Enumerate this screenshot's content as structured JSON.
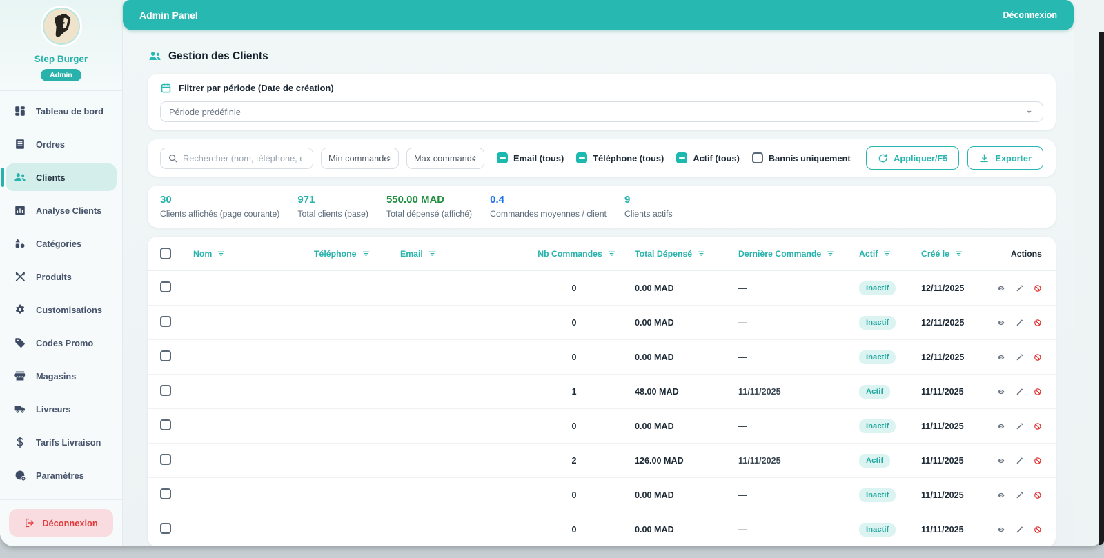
{
  "header": {
    "title": "Admin Panel",
    "logout_label": "Déconnexion"
  },
  "sidebar": {
    "user_name": "Step Burger",
    "user_role": "Admin",
    "items": [
      {
        "label": "Tableau de bord",
        "icon": "dashboard-icon",
        "active": false
      },
      {
        "label": "Ordres",
        "icon": "orders-icon",
        "active": false
      },
      {
        "label": "Clients",
        "icon": "people-icon",
        "active": true
      },
      {
        "label": "Analyse Clients",
        "icon": "analytics-icon",
        "active": false
      },
      {
        "label": "Catégories",
        "icon": "categories-icon",
        "active": false
      },
      {
        "label": "Produits",
        "icon": "utensils-icon",
        "active": false
      },
      {
        "label": "Customisations",
        "icon": "gear-icon",
        "active": false
      },
      {
        "label": "Codes Promo",
        "icon": "tag-icon",
        "active": false
      },
      {
        "label": "Magasins",
        "icon": "store-icon",
        "active": false
      },
      {
        "label": "Livreurs",
        "icon": "truck-icon",
        "active": false
      },
      {
        "label": "Tarifs Livraison",
        "icon": "dollar-icon",
        "active": false
      },
      {
        "label": "Paramètres",
        "icon": "settings-icon",
        "active": false
      }
    ],
    "logout_label": "Déconnexion",
    "logout_icon": "logout-icon"
  },
  "page": {
    "title": "Gestion des Clients",
    "icon": "people-icon"
  },
  "period_filter": {
    "title": "Filtrer par période (Date de création)",
    "icon": "calendar-icon",
    "select_placeholder": "Période prédéfinie",
    "caret_icon": "chevron-down-icon"
  },
  "filters": {
    "search_icon": "search-icon",
    "search_placeholder": "Rechercher (nom, téléphone, email)",
    "min_placeholder": "Min commandes",
    "max_placeholder": "Max commandes",
    "spinner_icon": "spinner-icon",
    "checkboxes": [
      {
        "label": "Email (tous)",
        "state": "indeterminate"
      },
      {
        "label": "Téléphone (tous)",
        "state": "indeterminate"
      },
      {
        "label": "Actif (tous)",
        "state": "indeterminate"
      },
      {
        "label": "Bannis uniquement",
        "state": "unchecked"
      }
    ],
    "apply": {
      "label": "Appliquer/F5",
      "icon": "refresh-icon"
    },
    "export": {
      "label": "Exporter",
      "icon": "download-icon"
    }
  },
  "stats": [
    {
      "value": "30",
      "label": "Clients affichés (page courante)",
      "color": "#29b2ac"
    },
    {
      "value": "971",
      "label": "Total clients (base)",
      "color": "#29b2ac"
    },
    {
      "value": "550.00 MAD",
      "label": "Total dépensé (affiché)",
      "color": "#1e8e3e"
    },
    {
      "value": "0.4",
      "label": "Commandes moyennes / client",
      "color": "#1a73e8"
    },
    {
      "value": "9",
      "label": "Clients actifs",
      "color": "#29b2ac"
    }
  ],
  "table": {
    "columns": [
      "Nom",
      "Téléphone",
      "Email",
      "Nb Commandes",
      "Total Dépensé",
      "Dernière Commande",
      "Actif",
      "Créé le",
      "Actions"
    ],
    "sort_icon": "sort-icon",
    "row_actions": [
      {
        "name": "view",
        "icon": "eye-icon"
      },
      {
        "name": "edit",
        "icon": "pencil-icon"
      },
      {
        "name": "ban",
        "icon": "ban-icon"
      }
    ],
    "rows": [
      {
        "nom": "",
        "telephone": "",
        "email": "",
        "nb_commandes": "0",
        "total_depense": "0.00 MAD",
        "derniere_commande": "—",
        "actif": "Inactif",
        "cree_le": "12/11/2025"
      },
      {
        "nom": "",
        "telephone": "",
        "email": "",
        "nb_commandes": "0",
        "total_depense": "0.00 MAD",
        "derniere_commande": "—",
        "actif": "Inactif",
        "cree_le": "12/11/2025"
      },
      {
        "nom": "",
        "telephone": "",
        "email": "",
        "nb_commandes": "0",
        "total_depense": "0.00 MAD",
        "derniere_commande": "—",
        "actif": "Inactif",
        "cree_le": "12/11/2025"
      },
      {
        "nom": "",
        "telephone": "",
        "email": "",
        "nb_commandes": "1",
        "total_depense": "48.00 MAD",
        "derniere_commande": "11/11/2025",
        "actif": "Actif",
        "cree_le": "11/11/2025"
      },
      {
        "nom": "",
        "telephone": "",
        "email": "",
        "nb_commandes": "0",
        "total_depense": "0.00 MAD",
        "derniere_commande": "—",
        "actif": "Inactif",
        "cree_le": "11/11/2025"
      },
      {
        "nom": "",
        "telephone": "",
        "email": "",
        "nb_commandes": "2",
        "total_depense": "126.00 MAD",
        "derniere_commande": "11/11/2025",
        "actif": "Actif",
        "cree_le": "11/11/2025"
      },
      {
        "nom": "",
        "telephone": "",
        "email": "",
        "nb_commandes": "0",
        "total_depense": "0.00 MAD",
        "derniere_commande": "—",
        "actif": "Inactif",
        "cree_le": "11/11/2025"
      },
      {
        "nom": "",
        "telephone": "",
        "email": "",
        "nb_commandes": "0",
        "total_depense": "0.00 MAD",
        "derniere_commande": "—",
        "actif": "Inactif",
        "cree_le": "11/11/2025"
      }
    ]
  },
  "colors": {
    "primary": "#28b8b2",
    "green": "#1e8e3e",
    "blue": "#1a73e8",
    "red": "#dc2626"
  }
}
